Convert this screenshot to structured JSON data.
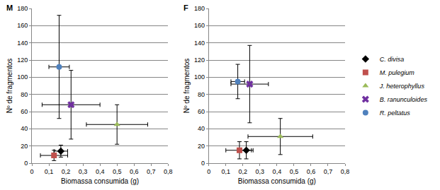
{
  "chart_data": [
    {
      "type": "scatter",
      "title": "M",
      "x_label": "Biomassa consumida (g)",
      "y_label": "Nº de fragmentos",
      "xlim": [
        0,
        0.8
      ],
      "xticks": [
        {
          "value": 0,
          "label": "0"
        },
        {
          "value": 0.1,
          "label": "0,1"
        },
        {
          "value": 0.2,
          "label": "0,2"
        },
        {
          "value": 0.3,
          "label": "0,3"
        },
        {
          "value": 0.4,
          "label": "0,4"
        },
        {
          "value": 0.5,
          "label": "0,5"
        },
        {
          "value": 0.6,
          "label": "0,6"
        },
        {
          "value": 0.7,
          "label": "0,7"
        },
        {
          "value": 0.8,
          "label": "0,8"
        }
      ],
      "ylim": [
        0,
        180
      ],
      "yticks": [
        0,
        20,
        40,
        60,
        80,
        100,
        120,
        140,
        160,
        180
      ],
      "grid": true,
      "series": [
        {
          "name": "C. divisa",
          "color": "#000000",
          "marker": "diamond",
          "x": [
            0.17
          ],
          "values": [
            14
          ],
          "x_error": [
            0.04
          ],
          "y_error": [
            7
          ]
        },
        {
          "name": "M. pulegium",
          "color": "#c0504d",
          "marker": "square",
          "x": [
            0.13
          ],
          "values": [
            9
          ],
          "x_error": [
            0.08
          ],
          "y_error": [
            6
          ]
        },
        {
          "name": "J. heterophyllus",
          "color": "#9bbb59",
          "marker": "triangle-up",
          "x": [
            0.5
          ],
          "values": [
            45
          ],
          "x_error": [
            0.18
          ],
          "y_error": [
            23
          ]
        },
        {
          "name": "B. ranunculoides",
          "color": "#7030a0",
          "marker": "x",
          "x": [
            0.23
          ],
          "values": [
            68
          ],
          "x_error": [
            0.17
          ],
          "y_error": [
            40
          ]
        },
        {
          "name": "R. peltatus",
          "color": "#4f81bd",
          "marker": "circle",
          "x": [
            0.16
          ],
          "values": [
            112
          ],
          "x_error": [
            0.06
          ],
          "y_error": [
            60
          ]
        }
      ]
    },
    {
      "type": "scatter",
      "title": "F",
      "x_label": "Biomassa consumida (g)",
      "y_label": "Nº de fragmentos",
      "xlim": [
        0,
        0.8
      ],
      "xticks": [
        {
          "value": 0,
          "label": "0"
        },
        {
          "value": 0.1,
          "label": "0,1"
        },
        {
          "value": 0.2,
          "label": "0,2"
        },
        {
          "value": 0.3,
          "label": "0,3"
        },
        {
          "value": 0.4,
          "label": "0,4"
        },
        {
          "value": 0.5,
          "label": "0,5"
        },
        {
          "value": 0.6,
          "label": "0,6"
        },
        {
          "value": 0.7,
          "label": "0,7"
        },
        {
          "value": 0.8,
          "label": "0,8"
        }
      ],
      "ylim": [
        0,
        180
      ],
      "yticks": [
        0,
        20,
        40,
        60,
        80,
        100,
        120,
        140,
        160,
        180
      ],
      "grid": true,
      "legend": "right",
      "series": [
        {
          "name": "C. divisa",
          "color": "#000000",
          "marker": "diamond",
          "x": [
            0.22
          ],
          "values": [
            15
          ],
          "x_error": [
            0.03
          ],
          "y_error": [
            10
          ]
        },
        {
          "name": "M. pulegium",
          "color": "#c0504d",
          "marker": "square",
          "x": [
            0.18
          ],
          "values": [
            15
          ],
          "x_error": [
            0.08
          ],
          "y_error": [
            10
          ]
        },
        {
          "name": "J. heterophyllus",
          "color": "#9bbb59",
          "marker": "triangle-up",
          "x": [
            0.42
          ],
          "values": [
            31
          ],
          "x_error": [
            0.19
          ],
          "y_error": [
            21
          ]
        },
        {
          "name": "B. ranunculoides",
          "color": "#7030a0",
          "marker": "x",
          "x": [
            0.24
          ],
          "values": [
            92
          ],
          "x_error": [
            0.11
          ],
          "y_error": [
            45
          ]
        },
        {
          "name": "R. peltatus",
          "color": "#4f81bd",
          "marker": "circle",
          "x": [
            0.17
          ],
          "values": [
            95
          ],
          "x_error": [
            0.04
          ],
          "y_error": [
            20
          ]
        }
      ]
    }
  ]
}
